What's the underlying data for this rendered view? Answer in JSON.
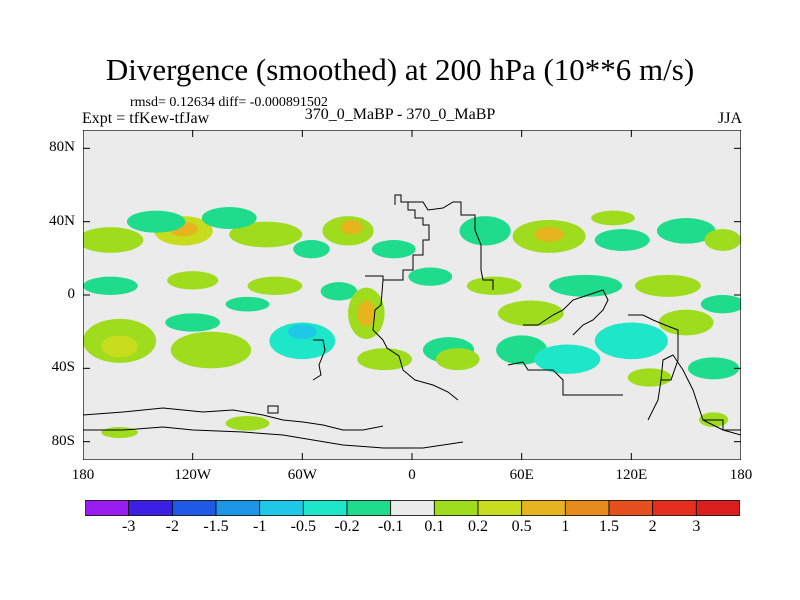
{
  "header": {
    "title": "Divergence (smoothed) at 200 hPa (10**6 m/s)",
    "stats": "rmsd= 0.12634 diff= -0.000891502",
    "expt": "Expt = tfKew-tfJaw",
    "center_label": "370_0_MaBP - 370_0_MaBP",
    "season": "JJA"
  },
  "chart_data": {
    "type": "heatmap",
    "title": "Divergence (smoothed) at 200 hPa (10**6 m/s)",
    "x_ticks": [
      "180",
      "120W",
      "60W",
      "0",
      "60E",
      "120E",
      "180"
    ],
    "x_values": [
      -180,
      -120,
      -60,
      0,
      60,
      120,
      180
    ],
    "y_ticks": [
      "80N",
      "40N",
      "0",
      "40S",
      "80S"
    ],
    "y_values": [
      80,
      40,
      0,
      -40,
      -80
    ],
    "xlim": [
      -180,
      180
    ],
    "ylim": [
      -90,
      90
    ],
    "colorbar": {
      "labels": [
        "-3",
        "-2",
        "-1.5",
        "-1",
        "-0.5",
        "-0.2",
        "-0.1",
        "0.1",
        "0.2",
        "0.5",
        "1",
        "1.5",
        "2",
        "3"
      ],
      "colors": [
        "#9a1cf0",
        "#3c1ee6",
        "#1e5ae6",
        "#1e96e6",
        "#1ec8e6",
        "#1ee6c8",
        "#1edc8c",
        "#ebebeb",
        "#a0dc1e",
        "#c8dc1e",
        "#e6b41e",
        "#e68c1e",
        "#e6501e",
        "#e62d1e",
        "#dc1e1e"
      ]
    },
    "background_color": "#ebebeb",
    "features": [
      {
        "lon": -165,
        "lat": 30,
        "rx": 18,
        "ry": 7,
        "value": 0.15
      },
      {
        "lon": -125,
        "lat": 35,
        "rx": 16,
        "ry": 8,
        "value": 0.3
      },
      {
        "lon": -125,
        "lat": 36,
        "rx": 8,
        "ry": 4,
        "value": 0.6
      },
      {
        "lon": -80,
        "lat": 33,
        "rx": 20,
        "ry": 7,
        "value": 0.15
      },
      {
        "lon": -35,
        "lat": 35,
        "rx": 14,
        "ry": 8,
        "value": 0.15
      },
      {
        "lon": -33,
        "lat": 37,
        "rx": 6,
        "ry": 4,
        "value": 0.6
      },
      {
        "lon": -140,
        "lat": 40,
        "rx": 16,
        "ry": 6,
        "value": -0.15
      },
      {
        "lon": -100,
        "lat": 42,
        "rx": 15,
        "ry": 6,
        "value": -0.15
      },
      {
        "lon": -55,
        "lat": 25,
        "rx": 10,
        "ry": 5,
        "value": -0.15
      },
      {
        "lon": -10,
        "lat": 25,
        "rx": 12,
        "ry": 5,
        "value": -0.15
      },
      {
        "lon": 40,
        "lat": 35,
        "rx": 14,
        "ry": 8,
        "value": -0.15
      },
      {
        "lon": 75,
        "lat": 32,
        "rx": 20,
        "ry": 9,
        "value": 0.15
      },
      {
        "lon": 75,
        "lat": 33,
        "rx": 8,
        "ry": 4,
        "value": 0.6
      },
      {
        "lon": 115,
        "lat": 30,
        "rx": 15,
        "ry": 6,
        "value": -0.15
      },
      {
        "lon": 150,
        "lat": 35,
        "rx": 16,
        "ry": 7,
        "value": -0.15
      },
      {
        "lon": 170,
        "lat": 30,
        "rx": 10,
        "ry": 6,
        "value": 0.15
      },
      {
        "lon": 110,
        "lat": 42,
        "rx": 12,
        "ry": 4,
        "value": 0.15
      },
      {
        "lon": -165,
        "lat": 5,
        "rx": 15,
        "ry": 5,
        "value": -0.15
      },
      {
        "lon": -120,
        "lat": 8,
        "rx": 14,
        "ry": 5,
        "value": 0.15
      },
      {
        "lon": -75,
        "lat": 5,
        "rx": 15,
        "ry": 5,
        "value": 0.15
      },
      {
        "lon": -90,
        "lat": -5,
        "rx": 12,
        "ry": 4,
        "value": -0.15
      },
      {
        "lon": -40,
        "lat": 2,
        "rx": 10,
        "ry": 5,
        "value": -0.15
      },
      {
        "lon": -25,
        "lat": -10,
        "rx": 10,
        "ry": 14,
        "value": 0.15
      },
      {
        "lon": -25,
        "lat": -10,
        "rx": 5,
        "ry": 7,
        "value": 0.6
      },
      {
        "lon": 10,
        "lat": 10,
        "rx": 12,
        "ry": 5,
        "value": -0.15
      },
      {
        "lon": 45,
        "lat": 5,
        "rx": 15,
        "ry": 5,
        "value": 0.15
      },
      {
        "lon": 95,
        "lat": 5,
        "rx": 20,
        "ry": 6,
        "value": -0.15
      },
      {
        "lon": 140,
        "lat": 5,
        "rx": 18,
        "ry": 6,
        "value": 0.15
      },
      {
        "lon": 170,
        "lat": -5,
        "rx": 12,
        "ry": 5,
        "value": -0.15
      },
      {
        "lon": -160,
        "lat": -25,
        "rx": 20,
        "ry": 12,
        "value": 0.15
      },
      {
        "lon": -160,
        "lat": -28,
        "rx": 10,
        "ry": 6,
        "value": 0.3
      },
      {
        "lon": -110,
        "lat": -30,
        "rx": 22,
        "ry": 10,
        "value": 0.15
      },
      {
        "lon": -120,
        "lat": -15,
        "rx": 15,
        "ry": 5,
        "value": -0.15
      },
      {
        "lon": -60,
        "lat": -25,
        "rx": 18,
        "ry": 10,
        "value": -0.3
      },
      {
        "lon": -60,
        "lat": -20,
        "rx": 8,
        "ry": 4,
        "value": -0.6
      },
      {
        "lon": -15,
        "lat": -35,
        "rx": 15,
        "ry": 6,
        "value": 0.15
      },
      {
        "lon": 20,
        "lat": -30,
        "rx": 14,
        "ry": 7,
        "value": -0.15
      },
      {
        "lon": 25,
        "lat": -35,
        "rx": 12,
        "ry": 6,
        "value": 0.15
      },
      {
        "lon": 65,
        "lat": -10,
        "rx": 18,
        "ry": 7,
        "value": 0.15
      },
      {
        "lon": 60,
        "lat": -30,
        "rx": 14,
        "ry": 8,
        "value": -0.15
      },
      {
        "lon": 85,
        "lat": -35,
        "rx": 18,
        "ry": 8,
        "value": -0.3
      },
      {
        "lon": 120,
        "lat": -25,
        "rx": 20,
        "ry": 10,
        "value": -0.3
      },
      {
        "lon": 150,
        "lat": -15,
        "rx": 15,
        "ry": 7,
        "value": 0.15
      },
      {
        "lon": 165,
        "lat": -40,
        "rx": 14,
        "ry": 6,
        "value": -0.15
      },
      {
        "lon": 130,
        "lat": -45,
        "rx": 12,
        "ry": 5,
        "value": 0.15
      },
      {
        "lon": -160,
        "lat": -75,
        "rx": 10,
        "ry": 3,
        "value": 0.15
      },
      {
        "lon": -90,
        "lat": -70,
        "rx": 12,
        "ry": 4,
        "value": 0.15
      },
      {
        "lon": 165,
        "lat": -68,
        "rx": 8,
        "ry": 4,
        "value": 0.15
      }
    ]
  }
}
